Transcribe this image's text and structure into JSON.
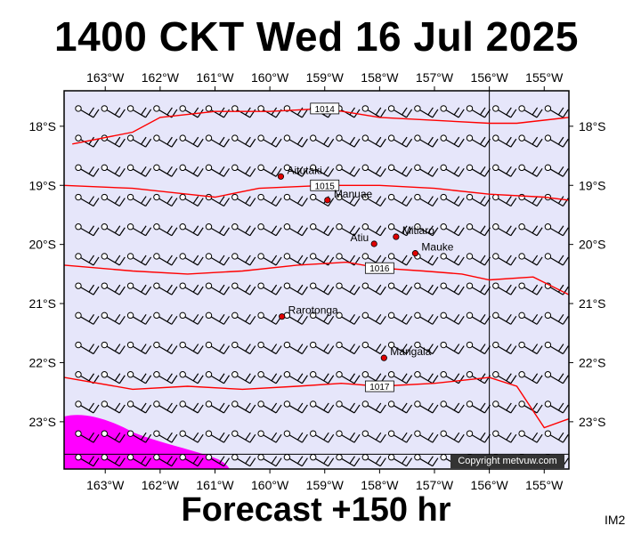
{
  "title": "1400 CKT Wed 16 Jul 2025",
  "footer": "Forecast +150 hr",
  "map_code": "IM2",
  "copyright": "Copyright metvuw.com",
  "map": {
    "lon_range": [
      -163.75,
      -154.55
    ],
    "lat_range": [
      -23.8,
      -17.4
    ],
    "lon_ticks": [
      "163°W",
      "162°W",
      "161°W",
      "160°W",
      "159°W",
      "158°W",
      "157°W",
      "156°W",
      "155°W"
    ],
    "lat_ticks": [
      "18°S",
      "19°S",
      "20°S",
      "21°S",
      "22°S",
      "23°S"
    ],
    "ocean_color": "#e6e6fa",
    "isobar_color": "#ff0000",
    "rain_color": "#ff00ff",
    "isobars": [
      {
        "label": "1014",
        "points": [
          [
            -163.6,
            -18.3
          ],
          [
            -162.5,
            -18.1
          ],
          [
            -162,
            -17.85
          ],
          [
            -161,
            -17.75
          ],
          [
            -160,
            -17.75
          ],
          [
            -159,
            -17.7
          ],
          [
            -158,
            -17.85
          ],
          [
            -157,
            -17.9
          ],
          [
            -156,
            -17.95
          ],
          [
            -155.5,
            -17.95
          ],
          [
            -154.55,
            -17.85
          ]
        ]
      },
      {
        "label": "1015",
        "points": [
          [
            -163.75,
            -19.0
          ],
          [
            -162.5,
            -19.05
          ],
          [
            -161.5,
            -19.15
          ],
          [
            -161,
            -19.2
          ],
          [
            -160.2,
            -19.05
          ],
          [
            -159,
            -19.0
          ],
          [
            -158,
            -19.0
          ],
          [
            -157,
            -19.05
          ],
          [
            -156,
            -19.15
          ],
          [
            -155,
            -19.2
          ],
          [
            -154.55,
            -19.25
          ]
        ]
      },
      {
        "label": "1016",
        "points": [
          [
            -163.75,
            -20.35
          ],
          [
            -162.5,
            -20.45
          ],
          [
            -161.5,
            -20.5
          ],
          [
            -160.5,
            -20.45
          ],
          [
            -159.5,
            -20.35
          ],
          [
            -158.6,
            -20.3
          ],
          [
            -158,
            -20.4
          ],
          [
            -157.2,
            -20.45
          ],
          [
            -156.5,
            -20.5
          ],
          [
            -156,
            -20.6
          ],
          [
            -155.2,
            -20.55
          ],
          [
            -154.55,
            -20.85
          ]
        ]
      },
      {
        "label": "1017",
        "points": [
          [
            -163.75,
            -22.25
          ],
          [
            -162.5,
            -22.45
          ],
          [
            -161.5,
            -22.4
          ],
          [
            -160.5,
            -22.45
          ],
          [
            -159.5,
            -22.4
          ],
          [
            -158.7,
            -22.35
          ],
          [
            -158,
            -22.4
          ],
          [
            -157,
            -22.35
          ],
          [
            -156,
            -22.25
          ],
          [
            -155.5,
            -22.4
          ],
          [
            -155,
            -23.1
          ],
          [
            -154.55,
            -22.95
          ]
        ]
      }
    ],
    "places": [
      {
        "name": "Aitutaki",
        "lon": -159.8,
        "lat": -18.85
      },
      {
        "name": "Manuae",
        "lon": -158.95,
        "lat": -19.25
      },
      {
        "name": "Atiu",
        "lon": -158.1,
        "lat": -19.99
      },
      {
        "name": "Mitiaro",
        "lon": -157.7,
        "lat": -19.87
      },
      {
        "name": "Mauke",
        "lon": -157.35,
        "lat": -20.15
      },
      {
        "name": "Rarotonga",
        "lon": -159.78,
        "lat": -21.22
      },
      {
        "name": "Mangaia",
        "lon": -157.92,
        "lat": -21.92
      }
    ],
    "meridian_line_lon": -156.0,
    "parallel_line_lat": -23.55
  }
}
